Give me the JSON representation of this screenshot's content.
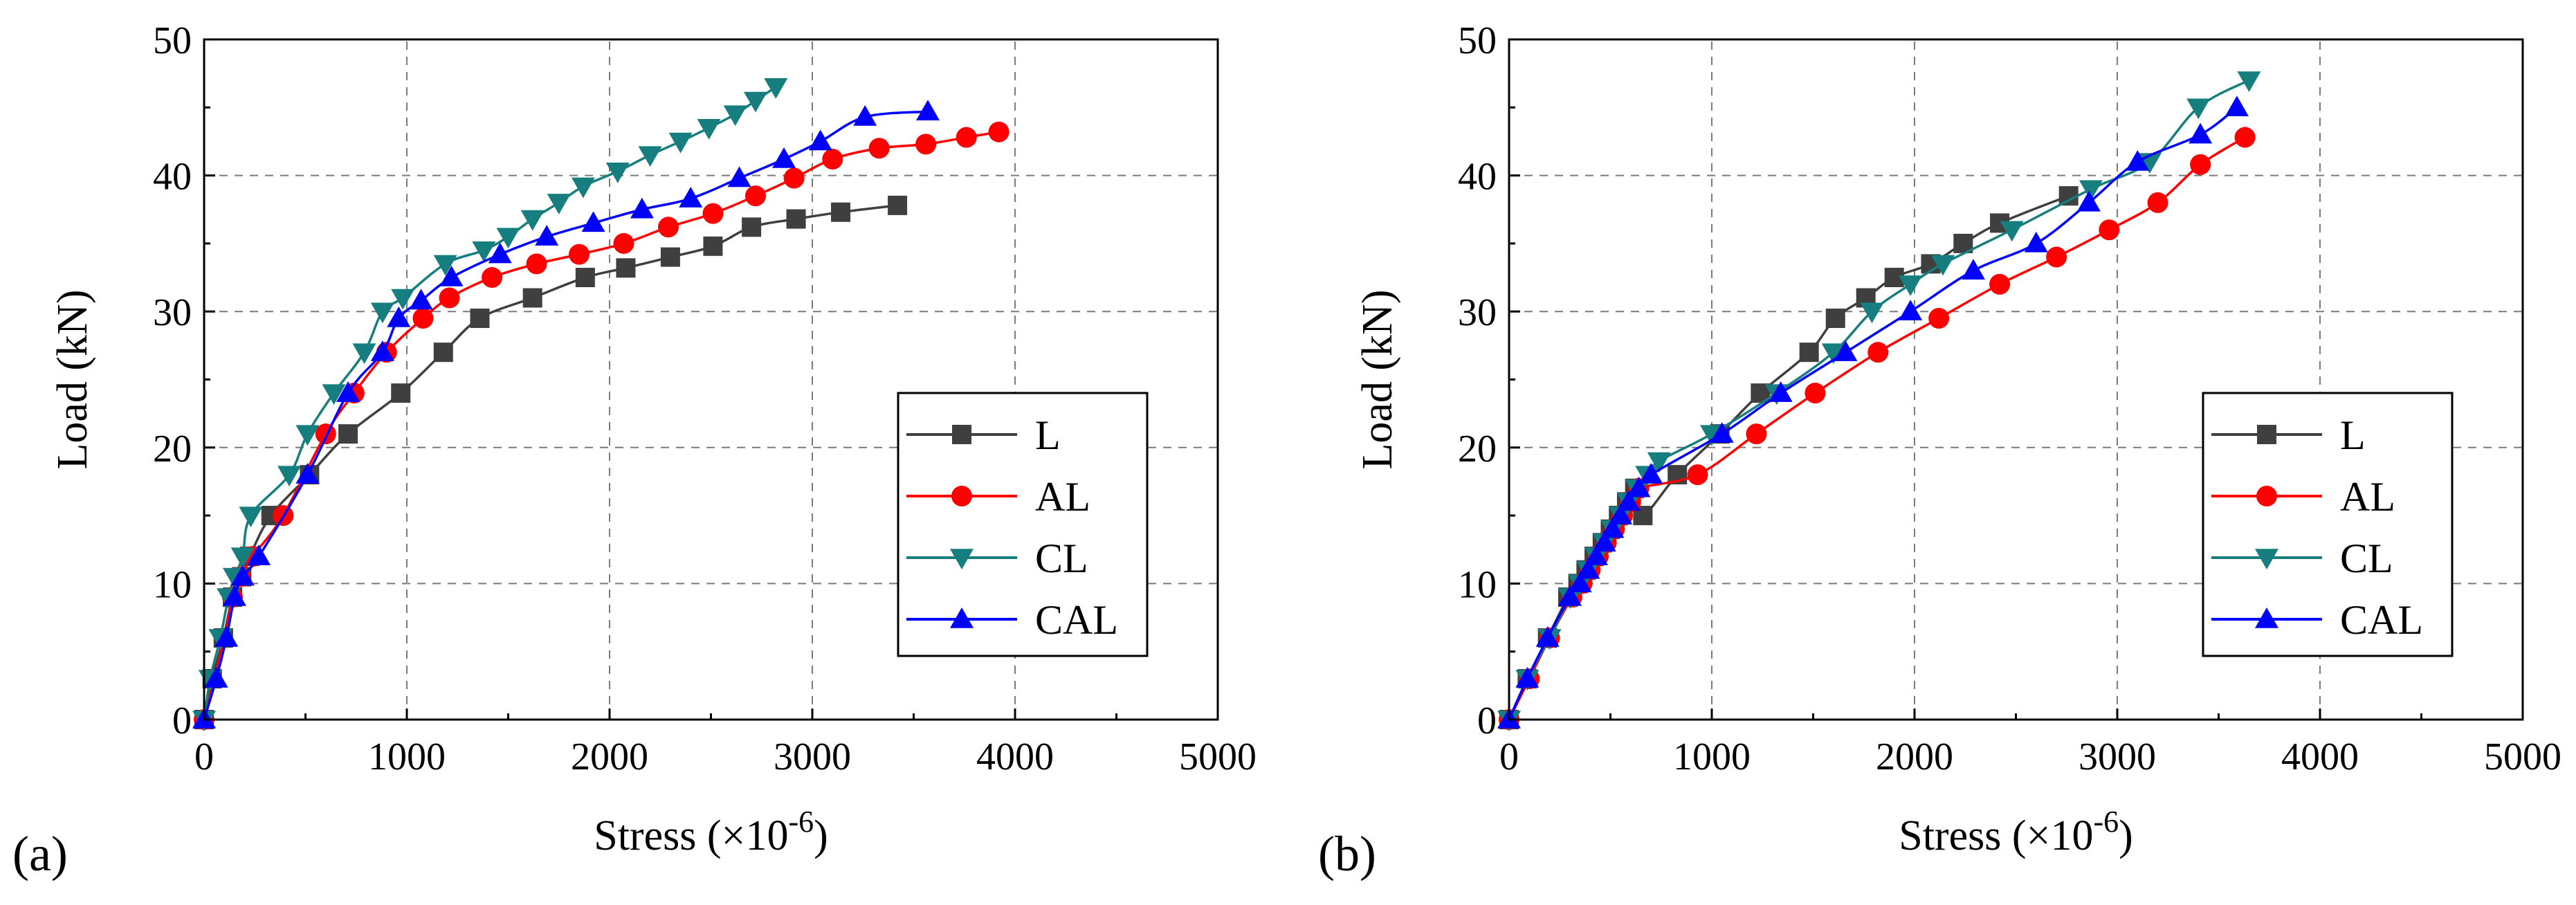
{
  "figure": {
    "panel_labels": [
      "(a)",
      "(b)"
    ]
  },
  "chart_data": [
    {
      "type": "line",
      "panel": "(a)",
      "xlabel": "Stress (×10",
      "xlabel_sup": "-6",
      "xlabel_end": ")",
      "ylabel": "Load (kN)",
      "xlim": [
        0,
        5000
      ],
      "ylim": [
        0,
        50
      ],
      "xticks": [
        0,
        1000,
        2000,
        3000,
        4000,
        5000
      ],
      "yticks": [
        0,
        10,
        20,
        30,
        40,
        50
      ],
      "grid": true,
      "legend_position": "lower-right",
      "series": [
        {
          "name": "L",
          "color": "#3f3f3f",
          "marker": "square",
          "x": [
            0,
            40,
            95,
            140,
            185,
            225,
            330,
            520,
            710,
            970,
            1180,
            1360,
            1620,
            1880,
            2080,
            2300,
            2510,
            2700,
            2920,
            3140,
            3420
          ],
          "y": [
            0,
            3,
            6,
            9,
            10.5,
            12,
            15,
            18,
            21,
            24,
            27,
            29.5,
            31,
            32.5,
            33.2,
            34,
            34.8,
            36.2,
            36.8,
            37.3,
            37.8
          ]
        },
        {
          "name": "AL",
          "color": "#ff0000",
          "marker": "circle",
          "x": [
            0,
            50,
            100,
            140,
            180,
            240,
            390,
            600,
            740,
            900,
            1080,
            1210,
            1420,
            1640,
            1850,
            2070,
            2290,
            2510,
            2720,
            2910,
            3100,
            3330,
            3560,
            3760,
            3920
          ],
          "y": [
            0,
            3,
            6,
            9,
            10.5,
            12,
            15,
            21,
            24,
            27,
            29.5,
            31,
            32.5,
            33.5,
            34.2,
            35,
            36.2,
            37.2,
            38.5,
            39.8,
            41.2,
            42,
            42.3,
            42.8,
            43.2
          ],
          "line_only_start": 3
        },
        {
          "name": "CL",
          "color": "#167e7e",
          "marker": "triangle-down",
          "x": [
            0,
            30,
            80,
            120,
            150,
            190,
            230,
            420,
            510,
            640,
            790,
            880,
            980,
            1190,
            1380,
            1500,
            1620,
            1750,
            1870,
            2040,
            2200,
            2350,
            2490,
            2620,
            2720,
            2820
          ],
          "y": [
            0,
            3,
            6,
            9,
            10.5,
            12,
            15,
            18,
            21,
            24,
            27,
            30,
            31,
            33.5,
            34.5,
            35.5,
            36.8,
            38,
            39.2,
            40.3,
            41.5,
            42.5,
            43.5,
            44.5,
            45.5,
            46.5
          ]
        },
        {
          "name": "CAL",
          "color": "#0000ff",
          "marker": "triangle-up",
          "x": [
            0,
            60,
            110,
            150,
            190,
            270,
            510,
            710,
            880,
            960,
            1070,
            1220,
            1460,
            1690,
            1920,
            2160,
            2400,
            2640,
            2860,
            3040,
            3260,
            3570
          ],
          "y": [
            0,
            3,
            6,
            9,
            10.5,
            12,
            18,
            24,
            27,
            29.5,
            30.8,
            32.5,
            34.2,
            35.5,
            36.5,
            37.5,
            38.3,
            39.8,
            41.2,
            42.5,
            44.3,
            44.7
          ]
        }
      ]
    },
    {
      "type": "line",
      "panel": "(b)",
      "xlabel": "Stress (×10",
      "xlabel_sup": "-6",
      "xlabel_end": ")",
      "ylabel": "Load (kN)",
      "xlim": [
        0,
        5000
      ],
      "ylim": [
        0,
        50
      ],
      "xticks": [
        0,
        1000,
        2000,
        3000,
        4000,
        5000
      ],
      "yticks": [
        0,
        10,
        20,
        30,
        40,
        50
      ],
      "grid": true,
      "legend_position": "lower-right",
      "series": [
        {
          "name": "L",
          "color": "#3f3f3f",
          "marker": "square",
          "x": [
            0,
            90,
            190,
            290,
            340,
            380,
            420,
            460,
            500,
            540,
            580,
            620,
            660,
            830,
            1040,
            1240,
            1480,
            1610,
            1760,
            1900,
            2080,
            2240,
            2420,
            2760
          ],
          "y": [
            0,
            3,
            6,
            9,
            10,
            11,
            12,
            13,
            14,
            15,
            16,
            17,
            15,
            18,
            21,
            24,
            27,
            29.5,
            31,
            32.5,
            33.5,
            35,
            36.5,
            38.5
          ]
        },
        {
          "name": "AL",
          "color": "#ff0000",
          "marker": "circle",
          "x": [
            0,
            100,
            200,
            310,
            360,
            400,
            440,
            480,
            520,
            560,
            600,
            640,
            930,
            1220,
            1510,
            1820,
            2120,
            2420,
            2700,
            2960,
            3200,
            3410,
            3630
          ],
          "y": [
            0,
            3,
            6,
            9,
            10,
            11,
            12,
            13,
            14,
            15,
            16,
            17,
            18,
            21,
            24,
            27,
            29.5,
            32,
            34,
            36,
            38,
            40.8,
            42.8
          ]
        },
        {
          "name": "CL",
          "color": "#167e7e",
          "marker": "triangle-down",
          "x": [
            0,
            90,
            200,
            300,
            350,
            390,
            430,
            470,
            510,
            550,
            590,
            630,
            680,
            740,
            1000,
            1320,
            1600,
            1790,
            1980,
            2140,
            2480,
            2870,
            3160,
            3400,
            3650
          ],
          "y": [
            0,
            3,
            6,
            9,
            10,
            11,
            12,
            13,
            14,
            15,
            16,
            17,
            18,
            19,
            21,
            24,
            27,
            30,
            32,
            33.5,
            36,
            39,
            41,
            45,
            47
          ]
        },
        {
          "name": "CAL",
          "color": "#0000ff",
          "marker": "triangle-up",
          "x": [
            0,
            90,
            190,
            300,
            350,
            390,
            430,
            470,
            510,
            550,
            590,
            640,
            700,
            1050,
            1340,
            1660,
            1980,
            2290,
            2600,
            2860,
            3100,
            3410,
            3590
          ],
          "y": [
            0,
            3,
            6,
            9,
            10,
            11,
            12,
            13,
            14,
            15,
            16,
            17,
            18,
            21,
            24,
            27,
            30,
            33,
            35,
            38,
            41,
            43,
            45
          ]
        }
      ]
    }
  ]
}
